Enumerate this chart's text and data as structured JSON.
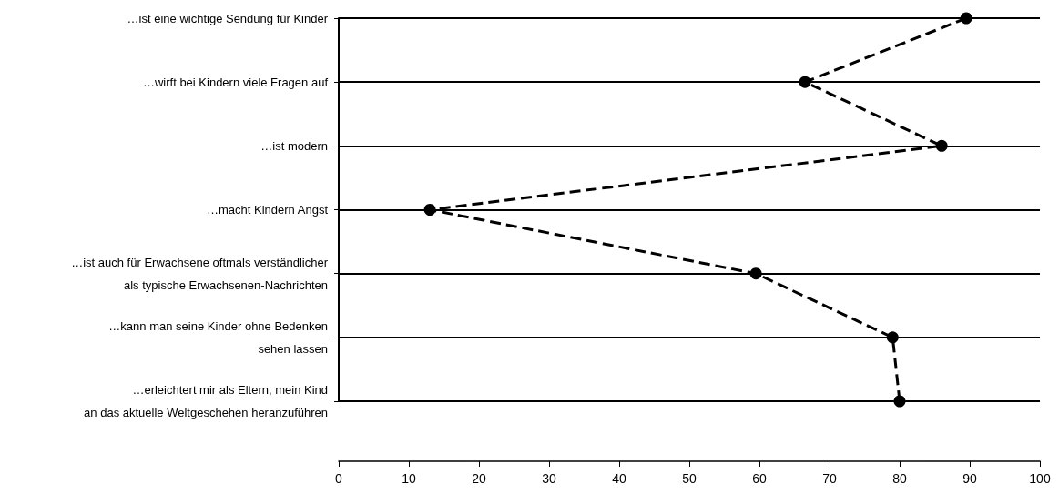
{
  "chart_data": {
    "type": "line",
    "orientation": "horizontal",
    "categories": [
      "…ist eine wichtige Sendung für Kinder",
      "…wirft bei Kindern viele Fragen auf",
      "…ist modern",
      "…macht Kindern Angst",
      "…ist auch für Erwachsene oftmals verständlicher\nals typische Erwachsenen-Nachrichten",
      "…kann man seine Kinder ohne Bedenken\nsehen lassen",
      "…erleichtert mir als Eltern, mein Kind\nan das aktuelle Weltgeschehen heranzuführen"
    ],
    "values": [
      89.5,
      66.5,
      86,
      13,
      59.5,
      79,
      80
    ],
    "color": "#000000",
    "xlim": [
      0,
      100
    ],
    "xticks": [
      0,
      10,
      20,
      30,
      40,
      50,
      60,
      70,
      80,
      90,
      100
    ],
    "grid": "y",
    "marker": "circle",
    "line_style": "dashed"
  }
}
